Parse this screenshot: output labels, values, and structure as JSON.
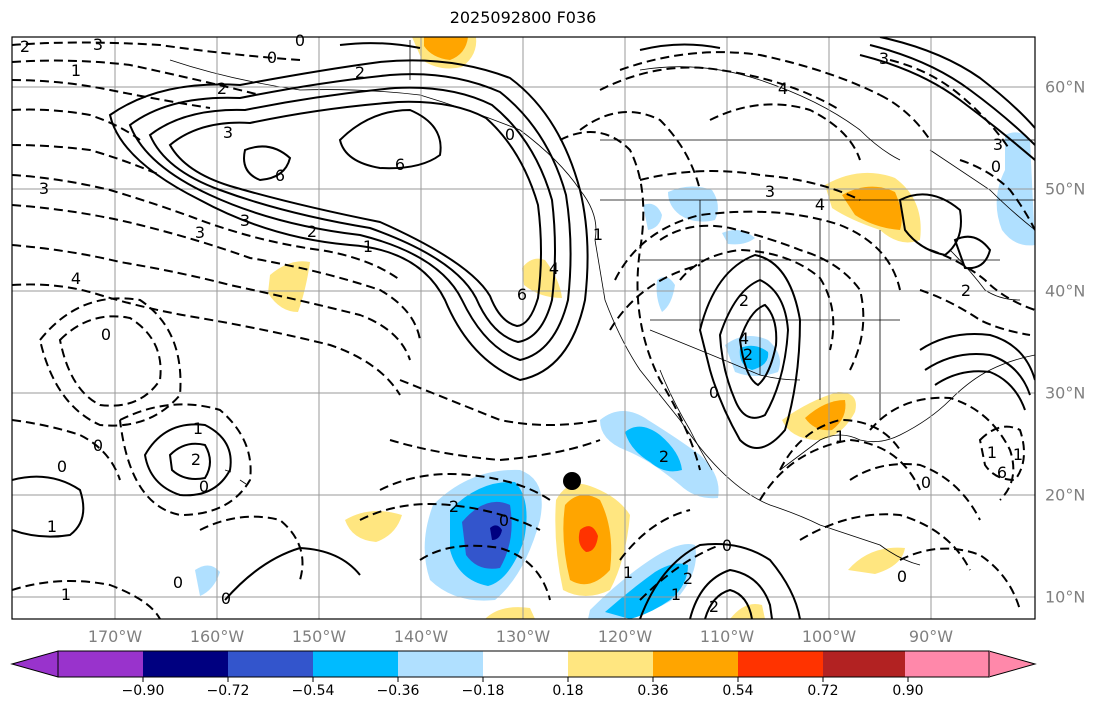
{
  "title": "2025092800 F036",
  "map": {
    "longitude_labels": [
      "170°W",
      "160°W",
      "150°W",
      "140°W",
      "130°W",
      "120°W",
      "110°W",
      "100°W",
      "90°W"
    ],
    "latitude_labels": [
      "60°N",
      "50°N",
      "40°N",
      "30°N",
      "20°N",
      "10°N"
    ],
    "contour_labels": [
      "2",
      "3",
      "1",
      "2",
      "0",
      "0",
      "3",
      "2",
      "0",
      "4",
      "3",
      "3",
      "6",
      "6",
      "3",
      "2",
      "1",
      "3",
      "4",
      "0",
      "1",
      "6",
      "3",
      "4",
      "4",
      "2",
      "4",
      "2",
      "2",
      "0",
      "0",
      "2",
      "1",
      "0",
      "0",
      "1",
      "1",
      "2",
      "2",
      "1",
      "0",
      "1",
      "2",
      "0",
      "0",
      "2",
      "0",
      "1",
      "0",
      "0",
      "6",
      "1",
      "1",
      "3",
      "0"
    ],
    "marker": "storm-position-dot"
  },
  "colorbar": {
    "tick_labels": [
      "−0.90",
      "−0.72",
      "−0.54",
      "−0.36",
      "−0.18",
      "0.18",
      "0.36",
      "0.54",
      "0.72",
      "0.90"
    ],
    "colors": [
      "#9933cc",
      "#000080",
      "#3355cc",
      "#00bbff",
      "#b0e0ff",
      "#ffffff",
      "#ffe680",
      "#ffa500",
      "#ff3300",
      "#b22222",
      "#ff88aa"
    ]
  }
}
